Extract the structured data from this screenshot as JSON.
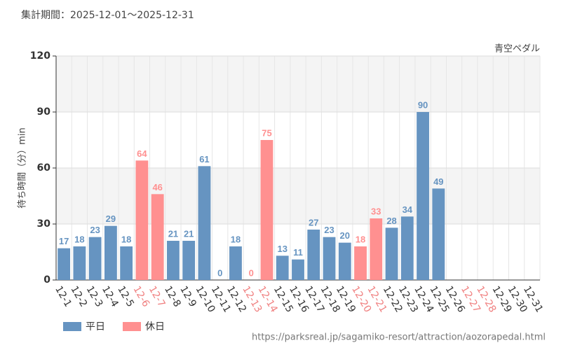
{
  "chart_data": {
    "type": "bar",
    "title": "集計期間：2025-12-01～2025-12-31",
    "subtitle": "青空ペダル",
    "y_label": "待ち時間（分）min",
    "source": "https://parksreal.jp/sagamiko-resort/attraction/aozorapedal.html",
    "categories": [
      "12-1",
      "12-2",
      "12-3",
      "12-4",
      "12-5",
      "12-6",
      "12-7",
      "12-8",
      "12-9",
      "12-10",
      "12-11",
      "12-12",
      "12-13",
      "12-14",
      "12-15",
      "12-16",
      "12-17",
      "12-18",
      "12-19",
      "12-20",
      "12-21",
      "12-22",
      "12-23",
      "12-24",
      "12-25",
      "12-26",
      "12-27",
      "12-28",
      "12-29",
      "12-30",
      "12-31"
    ],
    "category_label_colors": [
      "#333",
      "#333",
      "#333",
      "#333",
      "#333",
      "#f08080",
      "#f08080",
      "#333",
      "#333",
      "#333",
      "#333",
      "#333",
      "#f08080",
      "#f08080",
      "#333",
      "#333",
      "#333",
      "#333",
      "#333",
      "#f08080",
      "#f08080",
      "#333",
      "#333",
      "#333",
      "#333",
      "#333",
      "#f08080",
      "#f08080",
      "#333",
      "#333",
      "#333"
    ],
    "series": [
      {
        "name": "平日",
        "color": "#6694c1",
        "values": [
          17,
          18,
          23,
          29,
          18,
          null,
          null,
          21,
          21,
          61,
          0,
          18,
          null,
          null,
          13,
          11,
          27,
          23,
          20,
          null,
          null,
          28,
          34,
          90,
          49,
          null,
          null,
          null,
          null,
          null,
          null
        ]
      },
      {
        "name": "休日",
        "color": "#ff9090",
        "values": [
          null,
          null,
          null,
          null,
          null,
          64,
          46,
          null,
          null,
          null,
          null,
          null,
          0,
          75,
          null,
          null,
          null,
          null,
          null,
          18,
          33,
          null,
          null,
          null,
          null,
          null,
          null,
          null,
          null,
          null,
          null
        ]
      }
    ],
    "ylim": [
      0,
      120
    ],
    "yticks": [
      0,
      30,
      60,
      90,
      120
    ],
    "grid": true
  }
}
